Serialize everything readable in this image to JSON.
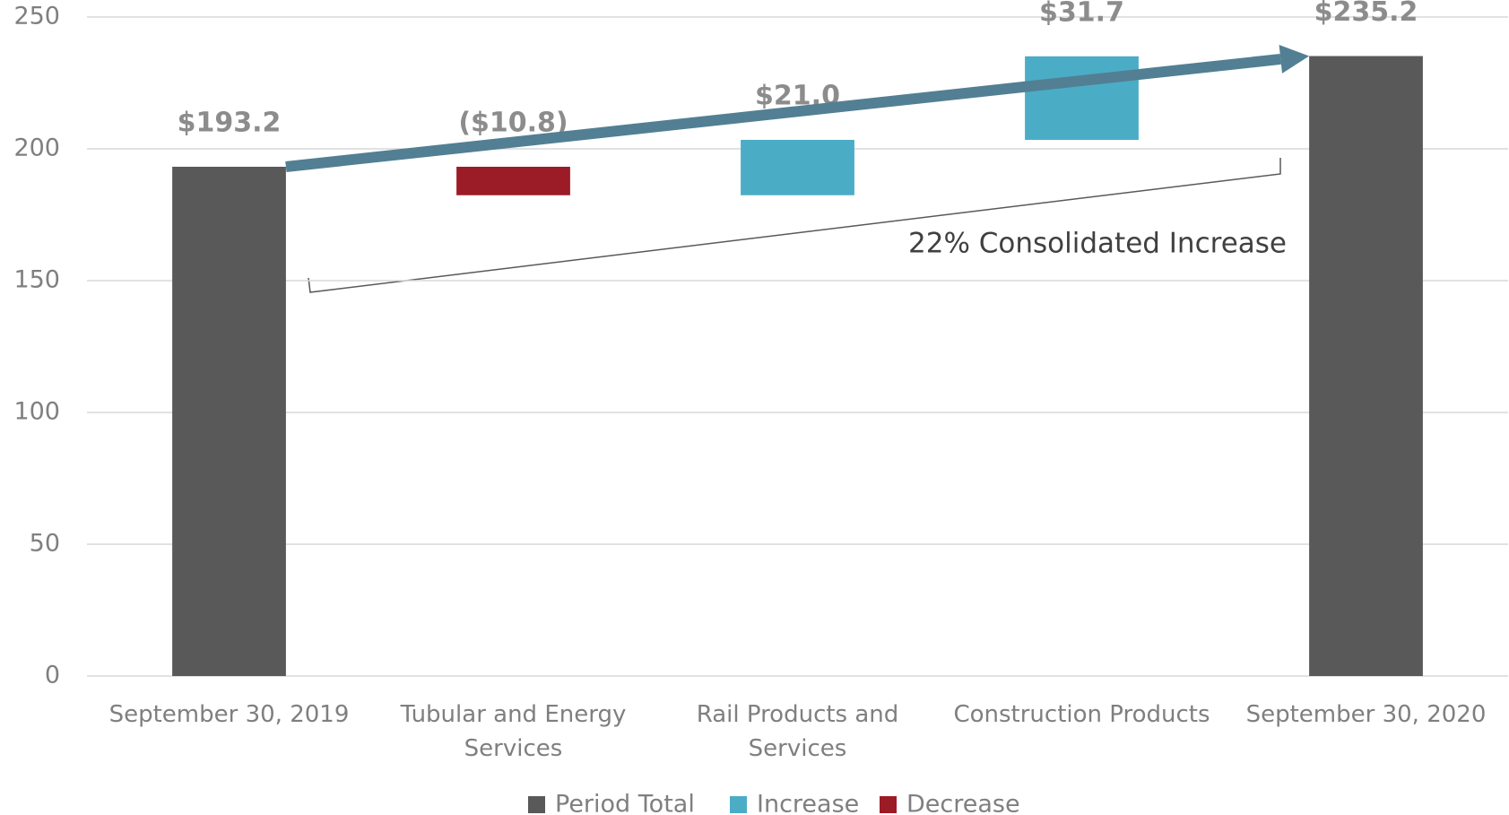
{
  "chart_data": {
    "type": "waterfall",
    "categories": [
      "September 30, 2019",
      "Tubular and Energy Services",
      "Rail Products and Services",
      "Construction Products",
      "September 30, 2020"
    ],
    "values": [
      193.2,
      -10.8,
      21.0,
      31.7,
      235.2
    ],
    "value_labels": [
      "$193.2",
      "($10.8)",
      "$21.0",
      "$31.7",
      "$235.2"
    ],
    "series": [
      {
        "name": "Period Total",
        "color": "#595959"
      },
      {
        "name": "Increase",
        "color": "#4bacc6"
      },
      {
        "name": "Decrease",
        "color": "#9b1c26"
      }
    ],
    "ylim": [
      0,
      250
    ],
    "yticks": [
      0,
      50,
      100,
      150,
      200,
      250
    ],
    "grid": true,
    "annotation": "22% Consolidated Increase",
    "legend": "bottom"
  }
}
